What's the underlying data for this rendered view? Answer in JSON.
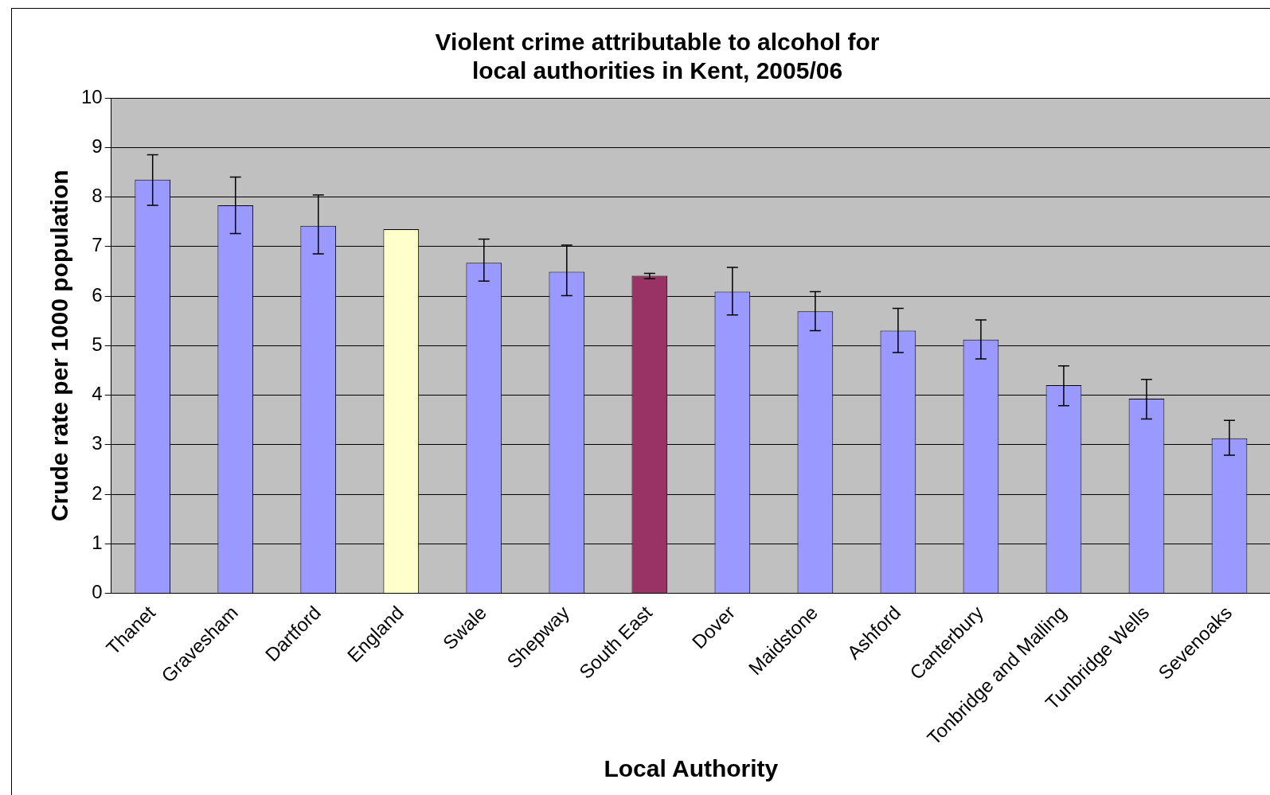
{
  "chart_data": {
    "type": "bar",
    "title": "Violent crime attributable to alcohol for\nlocal authorities in Kent, 2005/06",
    "xlabel": "Local Authority",
    "ylabel": "Crude rate per 1000 population",
    "categories": [
      "Thanet",
      "Gravesham",
      "Dartford",
      "England",
      "Swale",
      "Shepway",
      "South East",
      "Dover",
      "Maidstone",
      "Ashford",
      "Canterbury",
      "Tonbridge and Malling",
      "Tunbridge Wells",
      "Sevenoaks"
    ],
    "values": [
      8.35,
      7.83,
      7.42,
      7.35,
      6.67,
      6.49,
      6.41,
      6.09,
      5.69,
      5.3,
      5.12,
      4.2,
      3.93,
      3.13
    ],
    "colors": [
      "#9999ff",
      "#9999ff",
      "#9999ff",
      "#ffffcc",
      "#9999ff",
      "#9999ff",
      "#993366",
      "#9999ff",
      "#9999ff",
      "#9999ff",
      "#9999ff",
      "#9999ff",
      "#9999ff",
      "#9999ff"
    ],
    "errors": [
      [
        7.83,
        8.85
      ],
      [
        7.26,
        8.4
      ],
      [
        6.85,
        8.04
      ],
      null,
      [
        6.3,
        7.15
      ],
      [
        6.01,
        7.03
      ],
      [
        6.35,
        6.46
      ],
      [
        5.62,
        6.58
      ],
      [
        5.3,
        6.09
      ],
      [
        4.86,
        5.75
      ],
      [
        4.73,
        5.52
      ],
      [
        3.79,
        4.59
      ],
      [
        3.52,
        4.32
      ],
      [
        2.79,
        3.49
      ]
    ],
    "ylim": [
      0,
      10
    ],
    "yticks": [
      0,
      1,
      2,
      3,
      4,
      5,
      6,
      7,
      8,
      9,
      10
    ],
    "grid": "y",
    "legend": false
  }
}
